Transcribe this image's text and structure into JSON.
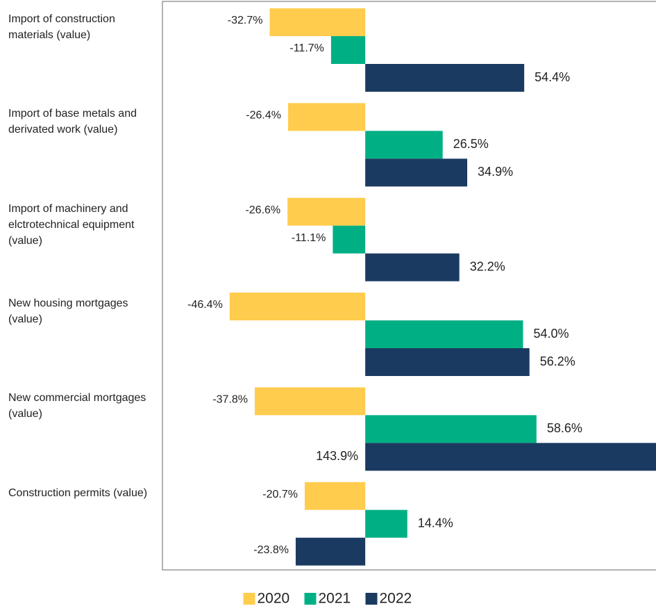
{
  "chart_data": {
    "type": "bar",
    "orientation": "horizontal",
    "categories": [
      "Import of construction materials (value)",
      "Import of base metals and derivated work (value)",
      "Import of machinery and elctrotechnical equipment (value)",
      "New housing mortgages (value)",
      "New commercial mortgages (value)",
      "Construction permits (value)"
    ],
    "series": [
      {
        "name": "2020",
        "color": "#FFCC4D",
        "values": [
          -32.7,
          -26.4,
          -26.6,
          -46.4,
          -37.8,
          -20.7
        ],
        "value_labels": [
          "-32.7%",
          "-26.4%",
          "-26.6%",
          "-46.4%",
          "-37.8%",
          "-20.7%"
        ]
      },
      {
        "name": "2021",
        "color": "#00B084",
        "values": [
          -11.7,
          26.5,
          -11.1,
          54.0,
          58.6,
          14.4
        ],
        "value_labels": [
          "-11.7%",
          "26.5%",
          "-11.1%",
          "54.0%",
          "58.6%",
          "14.4%"
        ]
      },
      {
        "name": "2022",
        "color": "#1B3A61",
        "values": [
          54.4,
          34.9,
          32.2,
          56.2,
          143.9,
          -23.8
        ],
        "value_labels": [
          "54.4%",
          "34.9%",
          "32.2%",
          "56.2%",
          "143.9%",
          "-23.8%"
        ]
      }
    ],
    "xlim": [
      -69.4,
      99.5
    ],
    "legend": "bottom"
  }
}
